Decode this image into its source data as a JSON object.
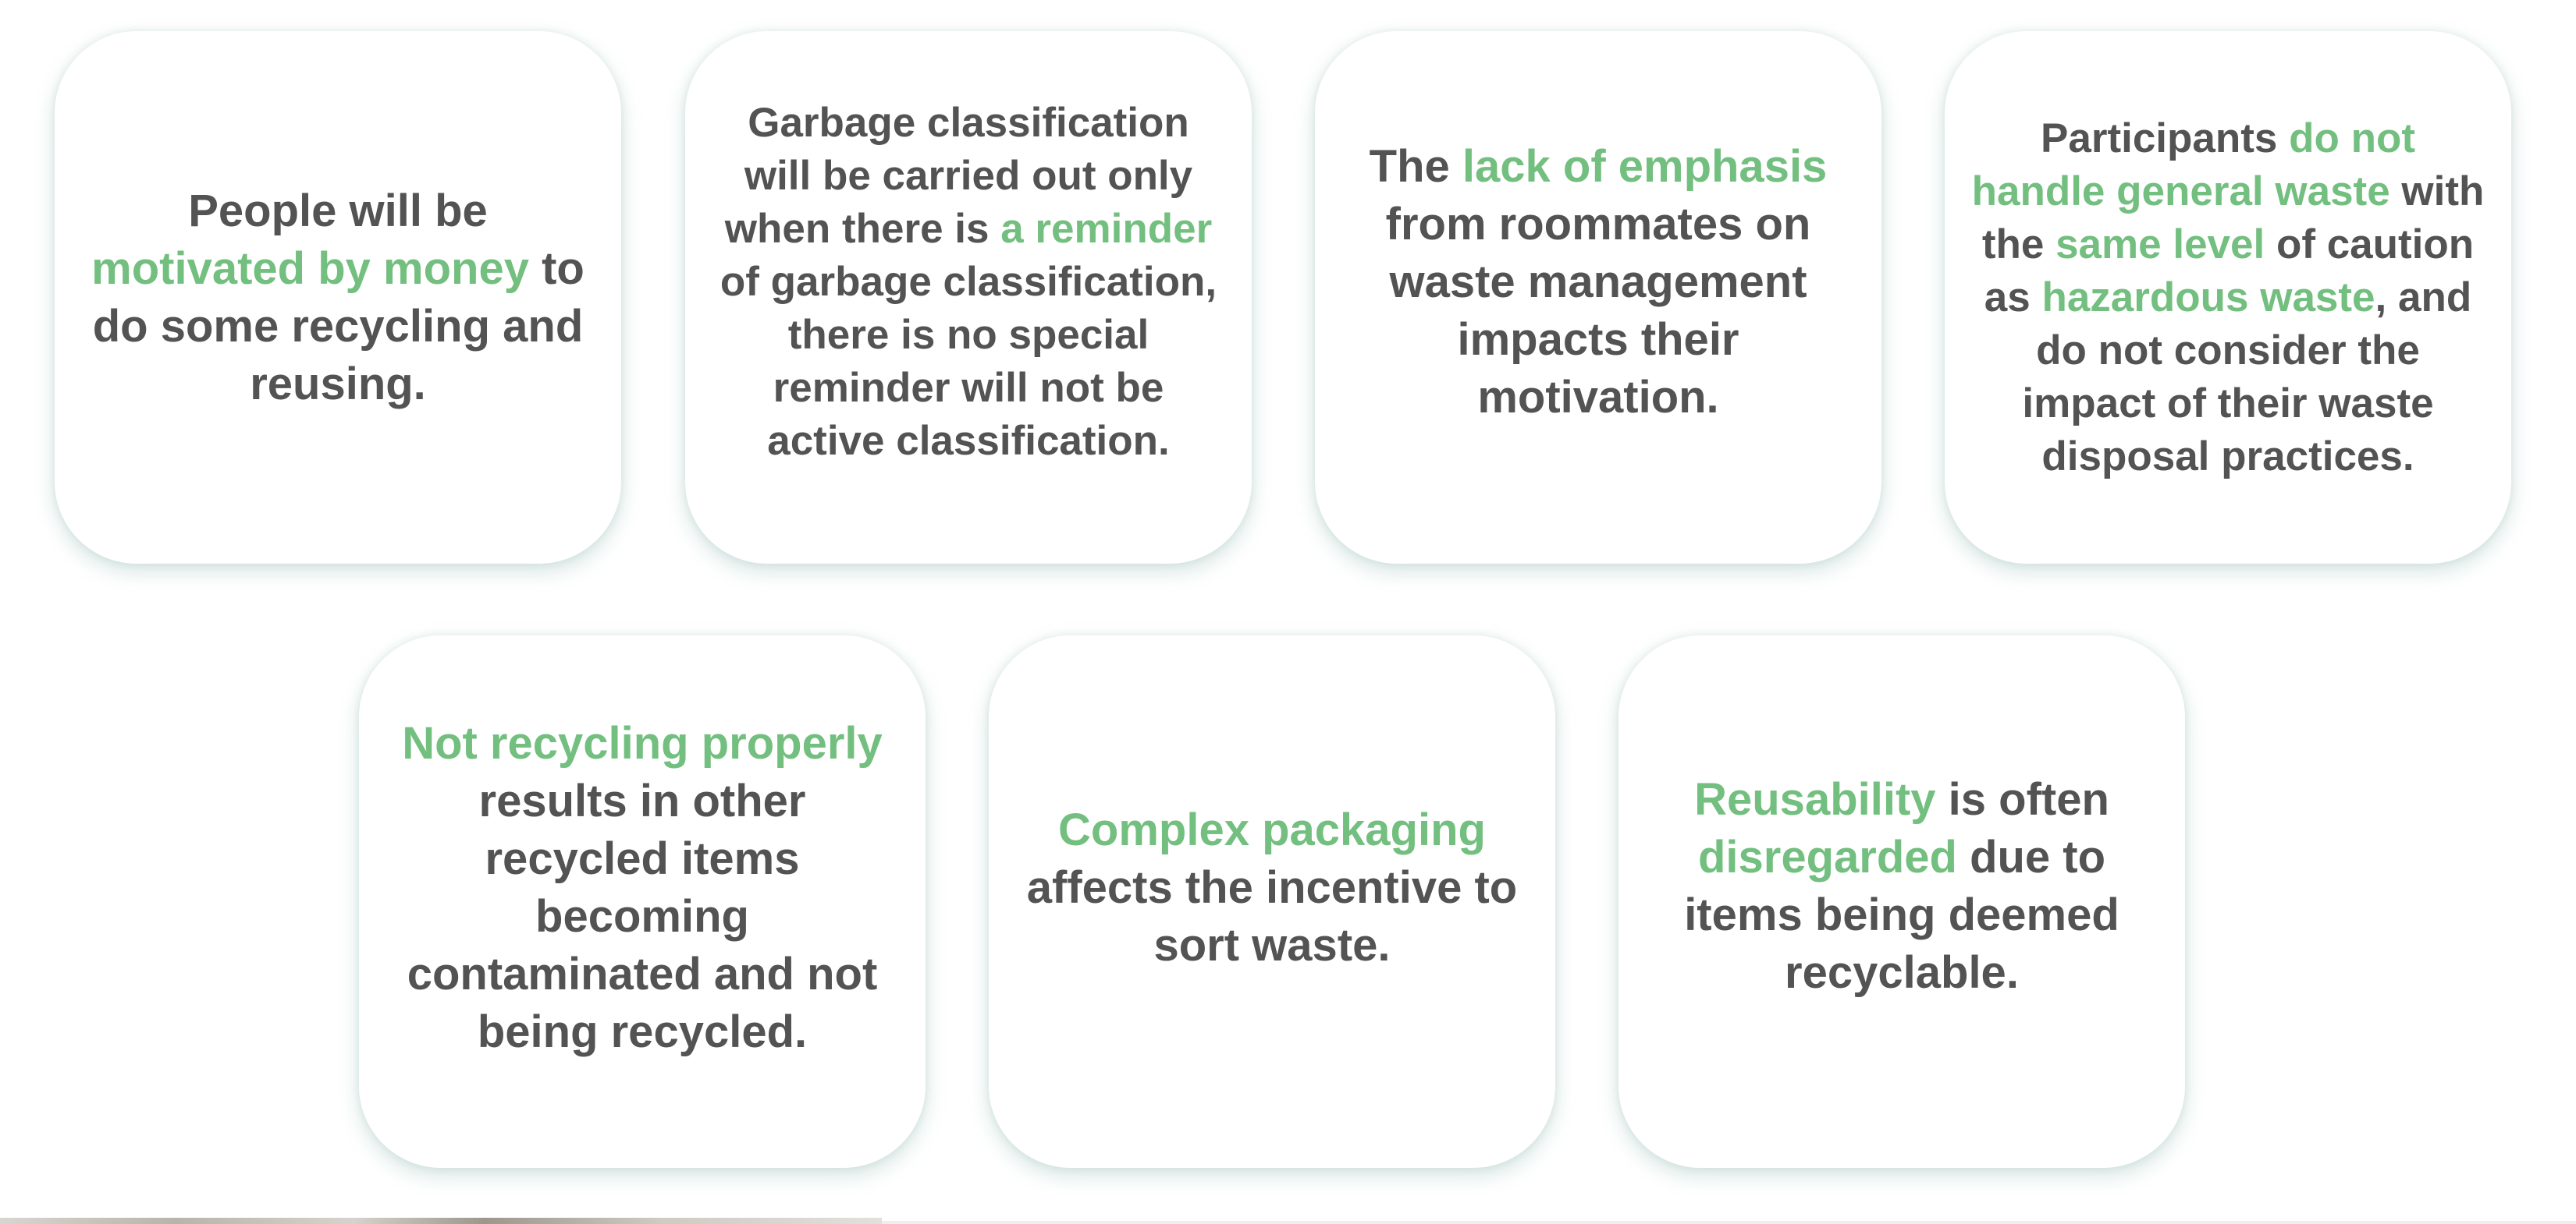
{
  "colors": {
    "text": "#535353",
    "highlight": "#73bf7f",
    "card_background": "#ffffff",
    "card_shadow": "#6ca096"
  },
  "cards": [
    {
      "segments": [
        {
          "text": "People will be ",
          "highlight": false
        },
        {
          "text": "motivated by money",
          "highlight": true
        },
        {
          "text": " to do some recycling and reusing.",
          "highlight": false
        }
      ]
    },
    {
      "segments": [
        {
          "text": "Garbage classification will be carried out only when there is ",
          "highlight": false
        },
        {
          "text": "a reminder",
          "highlight": true
        },
        {
          "text": " of garbage classification, there is no special reminder will not be active classification.",
          "highlight": false
        }
      ]
    },
    {
      "segments": [
        {
          "text": "The ",
          "highlight": false
        },
        {
          "text": "lack of emphasis",
          "highlight": true
        },
        {
          "text": " from roommates on waste management impacts their motivation.",
          "highlight": false
        }
      ]
    },
    {
      "segments": [
        {
          "text": "Participants ",
          "highlight": false
        },
        {
          "text": "do not handle general waste",
          "highlight": true
        },
        {
          "text": " with the ",
          "highlight": false
        },
        {
          "text": "same level",
          "highlight": true
        },
        {
          "text": " of caution as ",
          "highlight": false
        },
        {
          "text": "hazardous waste",
          "highlight": true
        },
        {
          "text": ", and do not consider the impact of their waste disposal practices.",
          "highlight": false
        }
      ]
    },
    {
      "segments": [
        {
          "text": "Not recycling properly",
          "highlight": true
        },
        {
          "text": " results in other recycled items becoming contaminated and not being recycled.",
          "highlight": false
        }
      ]
    },
    {
      "segments": [
        {
          "text": "Complex packaging",
          "highlight": true
        },
        {
          "text": " affects the incentive to sort waste.",
          "highlight": false
        }
      ]
    },
    {
      "segments": [
        {
          "text": "Reusability",
          "highlight": true
        },
        {
          "text": " is often ",
          "highlight": false
        },
        {
          "text": "disregarded",
          "highlight": true
        },
        {
          "text": " due to items being deemed recyclable.",
          "highlight": false
        }
      ]
    }
  ]
}
